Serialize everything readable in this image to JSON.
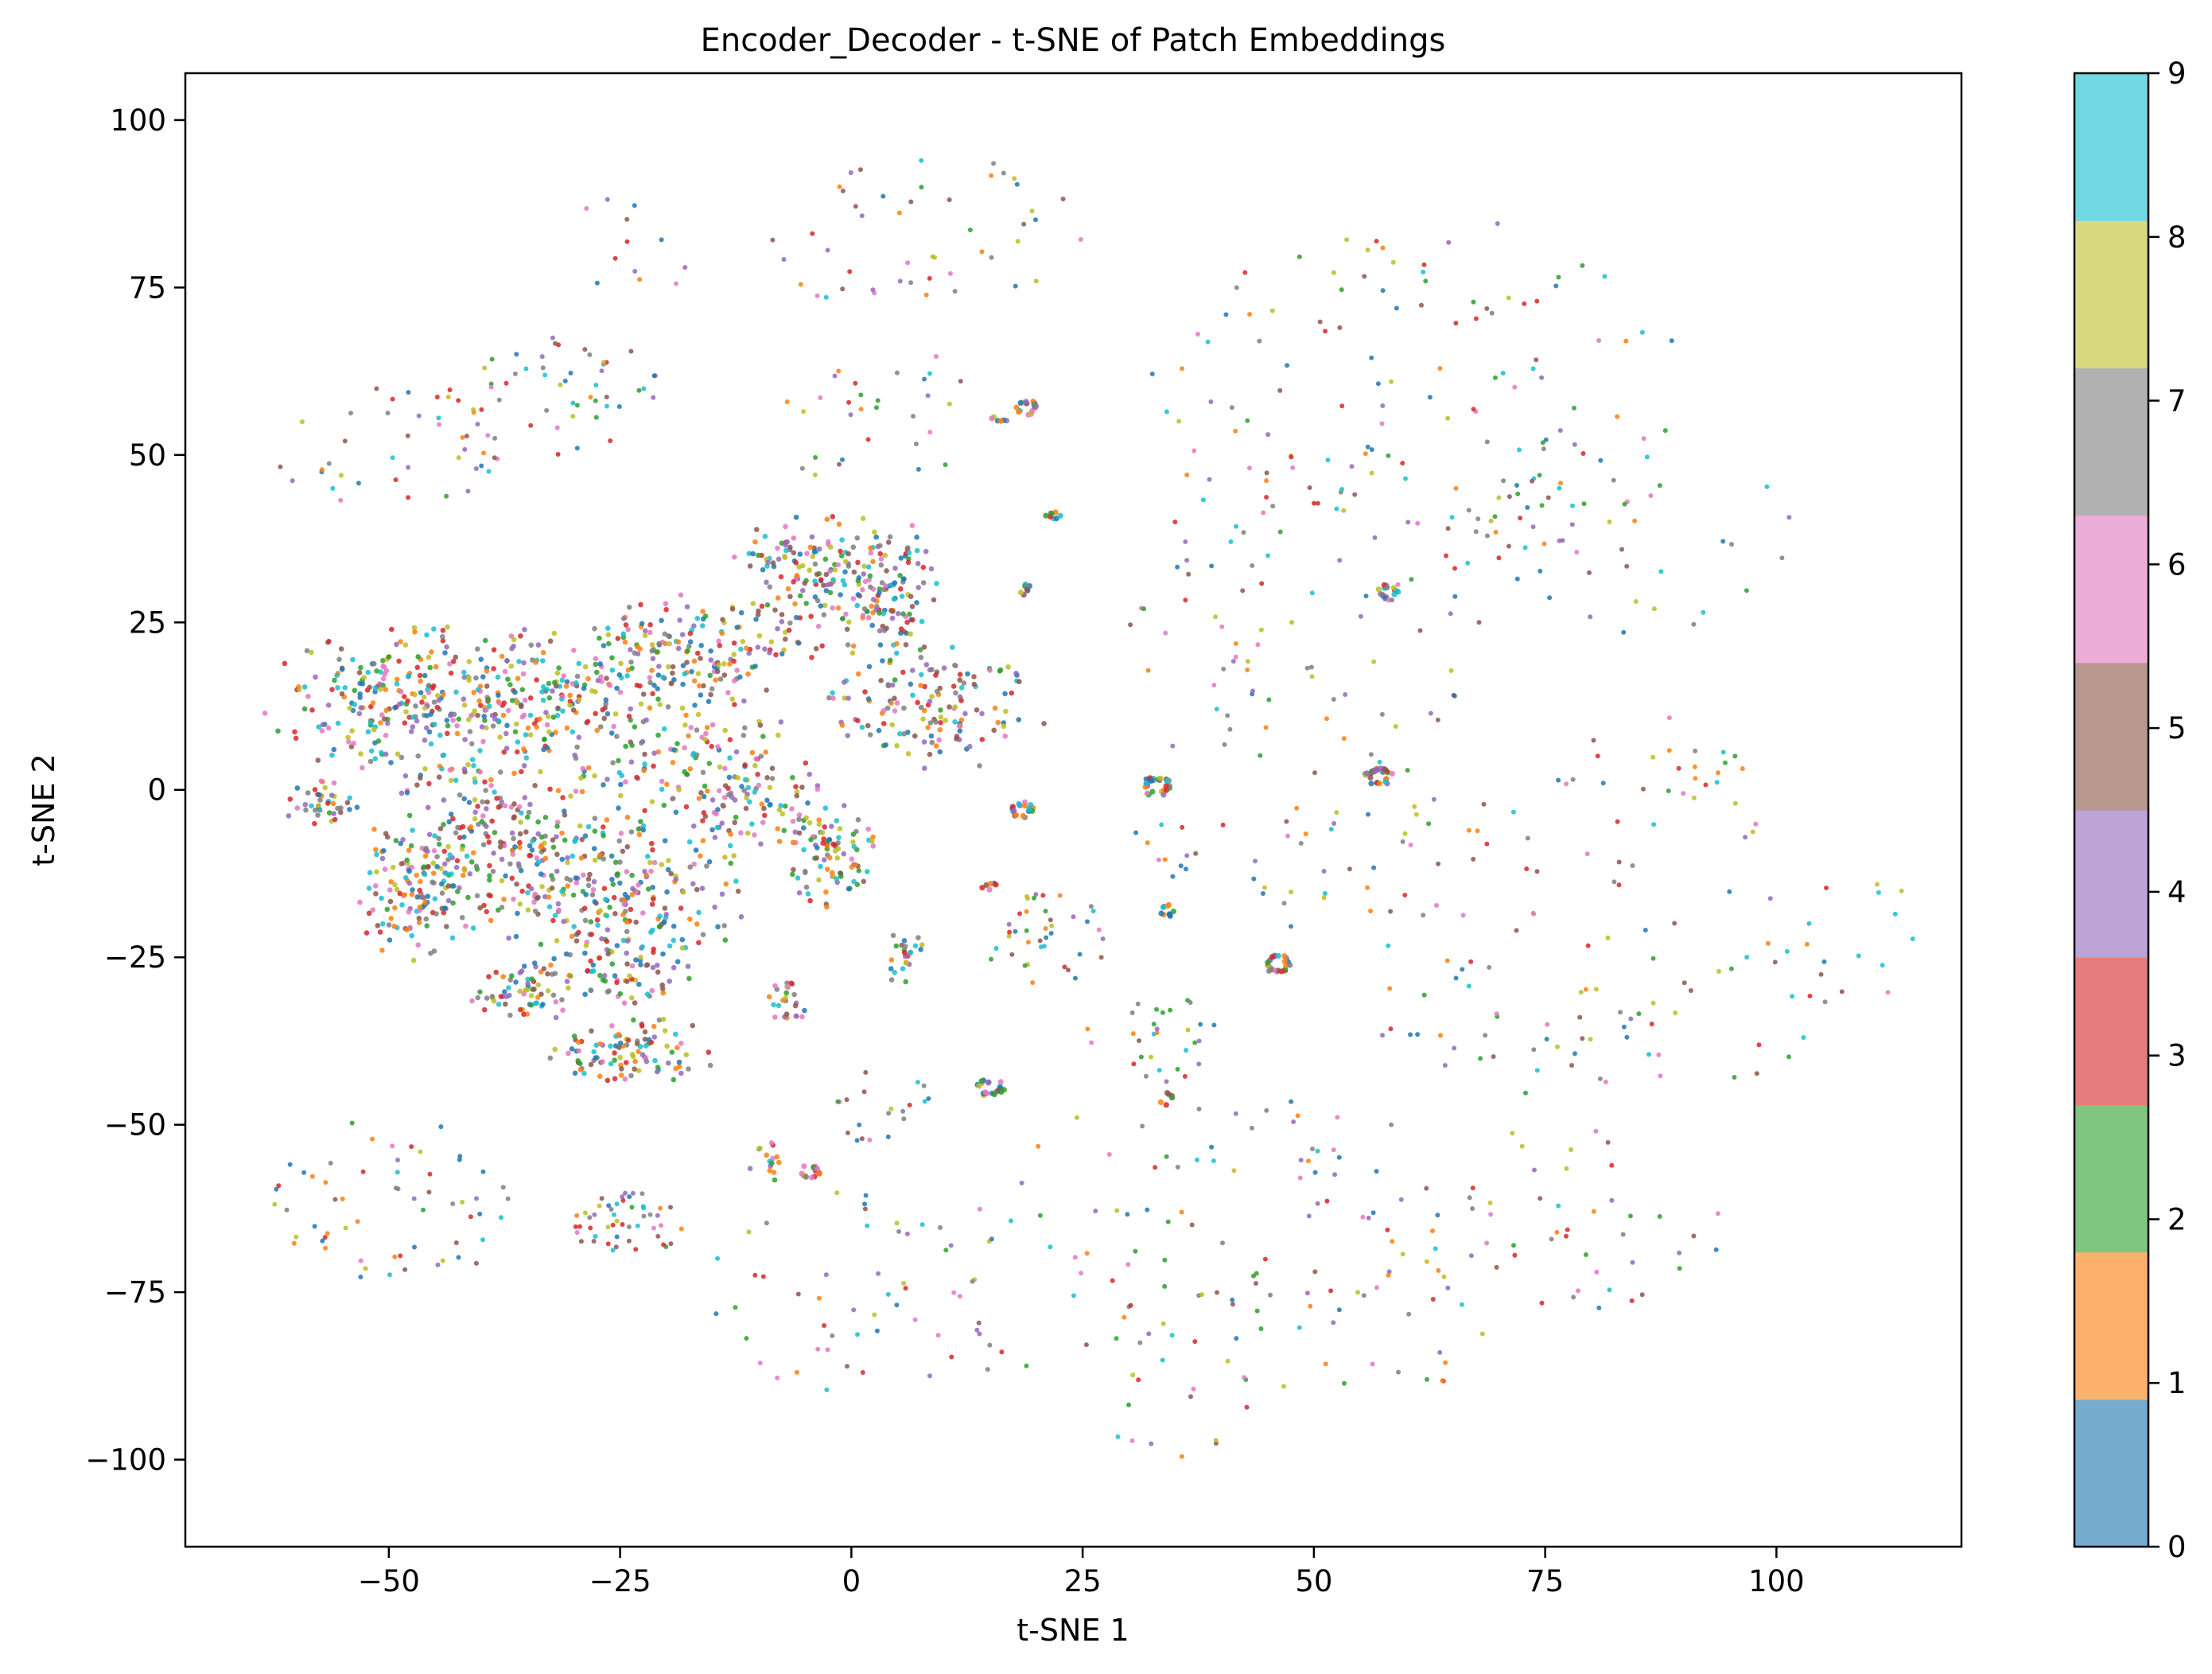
{
  "chart_data": {
    "type": "scatter",
    "title": "Encoder_Decoder - t-SNE of Patch Embeddings",
    "xlabel": "t-SNE 1",
    "ylabel": "t-SNE 2",
    "xlim": [
      -72,
      120
    ],
    "ylim": [
      -113,
      107
    ],
    "xticks": [
      -50,
      -25,
      0,
      25,
      50,
      75,
      100
    ],
    "xtick_labels": [
      "−50",
      "−25",
      "0",
      "25",
      "50",
      "75",
      "100"
    ],
    "yticks": [
      -100,
      -75,
      -50,
      -25,
      0,
      25,
      50,
      75,
      100
    ],
    "ytick_labels": [
      "−100",
      "−75",
      "−50",
      "−25",
      "0",
      "25",
      "50",
      "75",
      "100"
    ],
    "colorbar": {
      "range": [
        0,
        9
      ],
      "ticks": [
        0,
        1,
        2,
        3,
        4,
        5,
        6,
        7,
        8,
        9
      ],
      "tick_labels": [
        "0",
        "1",
        "2",
        "3",
        "4",
        "5",
        "6",
        "7",
        "8",
        "9"
      ],
      "colors": [
        "#76abd0",
        "#fcb26d",
        "#80c680",
        "#e47d7c",
        "#bda3d6",
        "#b8978e",
        "#ecaed8",
        "#b1b1b1",
        "#d7d97c",
        "#71d8e2"
      ]
    },
    "point_colors": [
      "#1f77b4",
      "#ff7f0e",
      "#2ca02c",
      "#d62728",
      "#9467bd",
      "#8c564b",
      "#e377c2",
      "#7f7f7f",
      "#bcbd22",
      "#17becf"
    ],
    "clusters": [
      {
        "cx": -47,
        "cy": 13,
        "rx": 14,
        "ry": 10,
        "n": 260
      },
      {
        "cx": -33,
        "cy": 12,
        "rx": 13,
        "ry": 12,
        "n": 230
      },
      {
        "cx": -38,
        "cy": -8,
        "rx": 14,
        "ry": 11,
        "n": 220
      },
      {
        "cx": -47,
        "cy": -16,
        "rx": 7,
        "ry": 8,
        "n": 110
      },
      {
        "cx": -25,
        "cy": -17,
        "rx": 12,
        "ry": 10,
        "n": 200
      },
      {
        "cx": -14,
        "cy": 0,
        "rx": 11,
        "ry": 10,
        "n": 180
      },
      {
        "cx": -17,
        "cy": 20,
        "rx": 12,
        "ry": 8,
        "n": 170
      },
      {
        "cx": -4,
        "cy": 32,
        "rx": 8,
        "ry": 8,
        "n": 150
      },
      {
        "cx": 4,
        "cy": 28,
        "rx": 5,
        "ry": 12,
        "n": 110
      },
      {
        "cx": 9,
        "cy": 12,
        "rx": 11,
        "ry": 9,
        "n": 140
      },
      {
        "cx": -3,
        "cy": -10,
        "rx": 5,
        "ry": 7,
        "n": 90
      },
      {
        "cx": -35,
        "cy": -30,
        "rx": 6,
        "ry": 4,
        "n": 70
      },
      {
        "cx": -24,
        "cy": -27,
        "rx": 6,
        "ry": 5,
        "n": 60
      },
      {
        "cx": -24,
        "cy": -39,
        "rx": 8,
        "ry": 5,
        "n": 100
      },
      {
        "cx": -57,
        "cy": -2,
        "rx": 4,
        "ry": 3,
        "n": 40
      },
      {
        "cx": -7,
        "cy": -32,
        "rx": 2,
        "ry": 3,
        "n": 25
      },
      {
        "cx": 6,
        "cy": -25,
        "rx": 2,
        "ry": 4,
        "n": 25
      },
      {
        "cx": -9,
        "cy": -55,
        "rx": 2,
        "ry": 3,
        "n": 15
      }
    ],
    "blobs": [
      {
        "cx": 19,
        "cy": 57,
        "rx": 1.2,
        "ry": 1.2,
        "n": 18
      },
      {
        "cx": 18.5,
        "cy": -3,
        "rx": 1.2,
        "ry": 1.2,
        "n": 18
      },
      {
        "cx": 33,
        "cy": 0.5,
        "rx": 1.6,
        "ry": 1.6,
        "n": 28
      },
      {
        "cx": 57,
        "cy": 2,
        "rx": 1.6,
        "ry": 1.3,
        "n": 28
      },
      {
        "cx": 46,
        "cy": -26,
        "rx": 1.6,
        "ry": 1.4,
        "n": 24
      },
      {
        "cx": 15,
        "cy": -44.5,
        "rx": 1.6,
        "ry": 1.3,
        "n": 22
      },
      {
        "cx": -4.5,
        "cy": -57,
        "rx": 1.1,
        "ry": 1.0,
        "n": 16
      },
      {
        "cx": 58,
        "cy": 29.5,
        "rx": 1.2,
        "ry": 1.2,
        "n": 16
      },
      {
        "cx": 18.5,
        "cy": 30,
        "rx": 0.9,
        "ry": 0.9,
        "n": 10
      },
      {
        "cx": 34,
        "cy": -18,
        "rx": 1.0,
        "ry": 1.0,
        "n": 10
      },
      {
        "cx": 22,
        "cy": 41,
        "rx": 1.0,
        "ry": 0.5,
        "n": 8
      },
      {
        "cx": 16,
        "cy": 55.5,
        "rx": 1.2,
        "ry": 0.5,
        "n": 6
      },
      {
        "cx": 34,
        "cy": -46,
        "rx": 0.7,
        "ry": 1.2,
        "n": 7
      },
      {
        "cx": 15,
        "cy": -14.5,
        "rx": 1.0,
        "ry": 0.6,
        "n": 6
      }
    ],
    "lattices": [
      {
        "cx": -50,
        "cy": 51,
        "rx": 13,
        "ry": 9,
        "n": 42
      },
      {
        "cx": -32,
        "cy": 59,
        "rx": 12,
        "ry": 9,
        "n": 50
      },
      {
        "cx": 7,
        "cy": 83,
        "rx": 18,
        "ry": 12,
        "n": 48
      },
      {
        "cx": -23,
        "cy": 81,
        "rx": 9,
        "ry": 8,
        "n": 12
      },
      {
        "cx": 3,
        "cy": 56,
        "rx": 13,
        "ry": 11,
        "n": 30
      },
      {
        "cx": 60,
        "cy": 61,
        "rx": 30,
        "ry": 25,
        "n": 110
      },
      {
        "cx": 82,
        "cy": 38,
        "rx": 20,
        "ry": 15,
        "n": 55
      },
      {
        "cx": 49,
        "cy": 25,
        "rx": 20,
        "ry": 27,
        "n": 90
      },
      {
        "cx": 80,
        "cy": -22,
        "rx": 35,
        "ry": 24,
        "n": 130
      },
      {
        "cx": -50,
        "cy": -62,
        "rx": 13,
        "ry": 13,
        "n": 60
      },
      {
        "cx": -24,
        "cy": -65,
        "rx": 6,
        "ry": 5,
        "n": 50
      },
      {
        "cx": 0,
        "cy": -75,
        "rx": 16,
        "ry": 15,
        "n": 48
      },
      {
        "cx": 21,
        "cy": -22,
        "rx": 7,
        "ry": 7,
        "n": 40
      },
      {
        "cx": 32,
        "cy": -37,
        "rx": 8,
        "ry": 7,
        "n": 30
      },
      {
        "cx": 40,
        "cy": -72,
        "rx": 30,
        "ry": 28,
        "n": 140
      },
      {
        "cx": 3,
        "cy": -47,
        "rx": 6,
        "ry": 6,
        "n": 20
      },
      {
        "cx": 75,
        "cy": -65,
        "rx": 20,
        "ry": 15,
        "n": 50
      },
      {
        "cx": 46,
        "cy": -8,
        "rx": 16,
        "ry": 8,
        "n": 30
      },
      {
        "cx": 85,
        "cy": 5,
        "rx": 14,
        "ry": 6,
        "n": 20
      }
    ]
  }
}
